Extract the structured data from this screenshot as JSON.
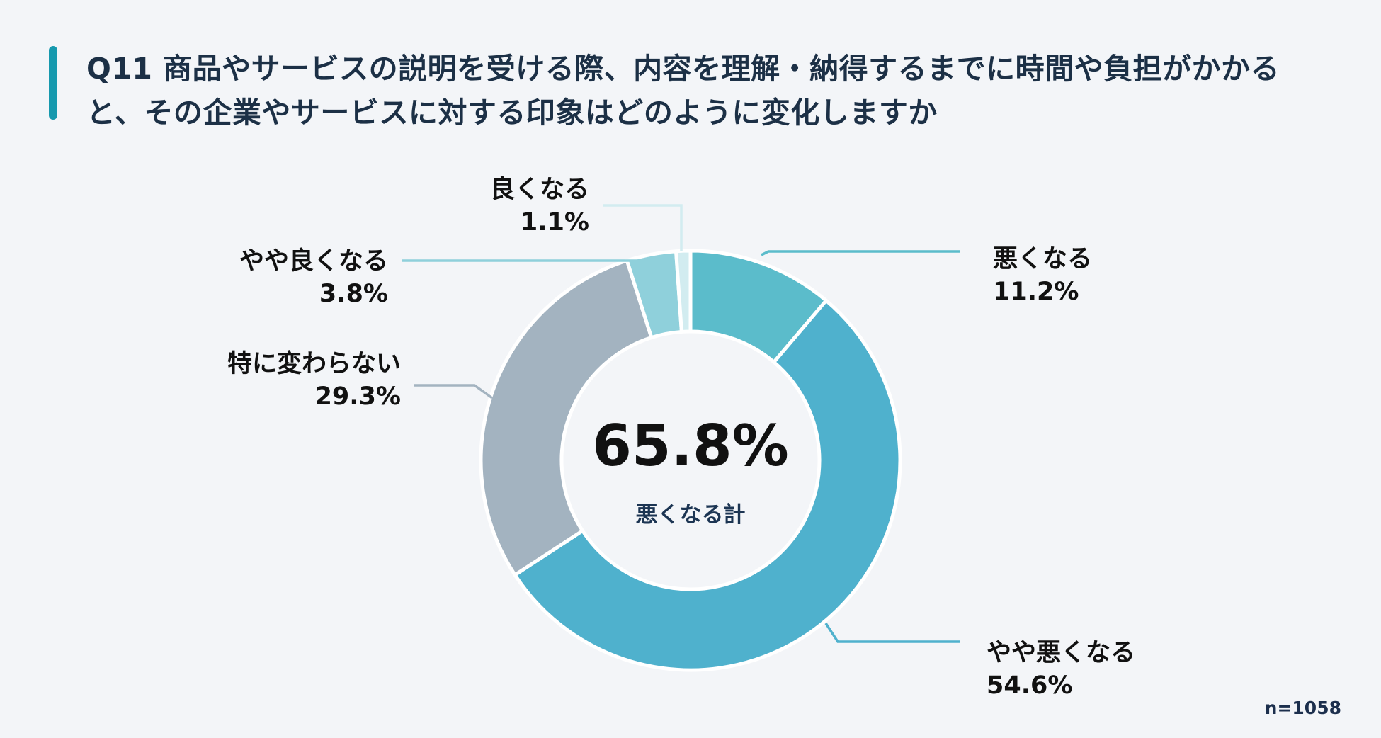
{
  "header": {
    "title": "Q11 商品やサービスの説明を受ける際、内容を理解・納得するまでに時間や負担がかかると、その企業やサービスに対する印象はどのように変化しますか",
    "accent_color": "#1699ae"
  },
  "center": {
    "value": "65.8%",
    "label": "悪くなる計"
  },
  "footer": {
    "sample_size": "n=1058"
  },
  "labels": {
    "worse": {
      "name": "悪くなる",
      "value": "11.2%"
    },
    "somewhat_worse": {
      "name": "やや悪くなる",
      "value": "54.6%"
    },
    "no_change": {
      "name": "特に変わらない",
      "value": "29.3%"
    },
    "somewhat_better": {
      "name": "やや良くなる",
      "value": "3.8%"
    },
    "better": {
      "name": "良くなる",
      "value": "1.1%"
    }
  },
  "chart_data": {
    "type": "pie",
    "title": "Q11 商品やサービスの説明を受ける際、内容を理解・納得するまでに時間や負担がかかると、その企業やサービスに対する印象はどのように変化しますか",
    "subtitle": "",
    "categories": [
      "悪くなる",
      "やや悪くなる",
      "特に変わらない",
      "やや良くなる",
      "良くなる"
    ],
    "values": [
      11.2,
      54.6,
      29.3,
      3.8,
      1.1
    ],
    "colors": [
      "#5bbccb",
      "#4fb1cd",
      "#a3b3c0",
      "#8fd0db",
      "#d2ecf0"
    ],
    "donut": true,
    "center_text": "65.8%",
    "center_subtext": "悪くなる計",
    "annotations": [
      "n=1058"
    ],
    "start_angle": "12 o'clock, clockwise",
    "legend": "none (leader-line labels)"
  }
}
